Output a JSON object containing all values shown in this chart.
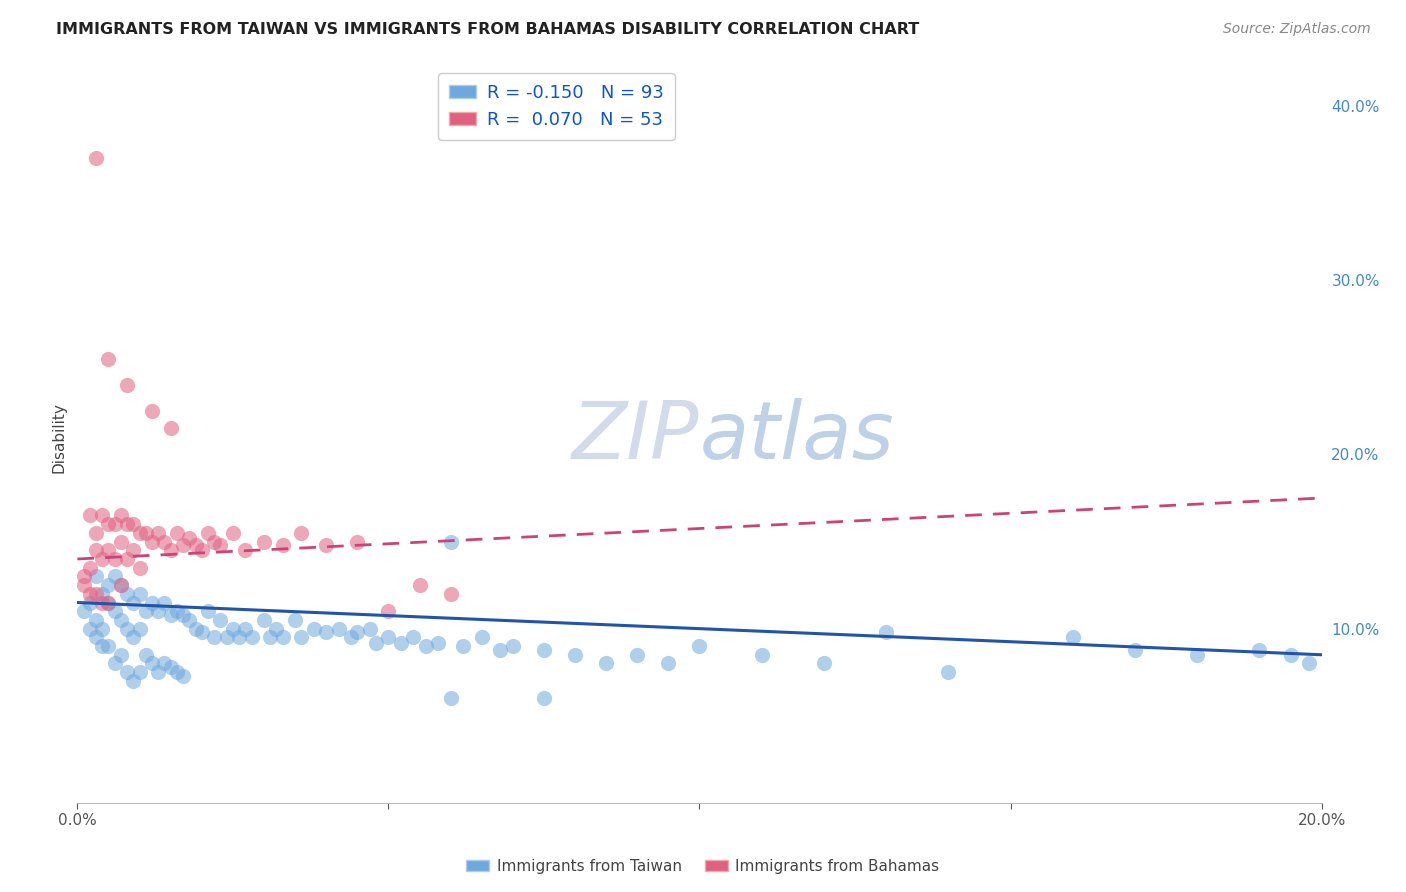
{
  "title": "IMMIGRANTS FROM TAIWAN VS IMMIGRANTS FROM BAHAMAS DISABILITY CORRELATION CHART",
  "source": "Source: ZipAtlas.com",
  "ylabel": "Disability",
  "xlim": [
    0.0,
    0.2
  ],
  "ylim": [
    0.0,
    0.42
  ],
  "x_ticks": [
    0.0,
    0.05,
    0.1,
    0.15,
    0.2
  ],
  "x_tick_labels": [
    "0.0%",
    "",
    "",
    "",
    "20.0%"
  ],
  "y_ticks_right": [
    0.1,
    0.2,
    0.3,
    0.4
  ],
  "y_tick_labels_right": [
    "10.0%",
    "20.0%",
    "30.0%",
    "40.0%"
  ],
  "taiwan_R": -0.15,
  "taiwan_N": 93,
  "bahamas_R": 0.07,
  "bahamas_N": 53,
  "taiwan_color": "#6fa8dc",
  "bahamas_color": "#e06080",
  "taiwan_line_color": "#2255aa",
  "bahamas_line_color": "#cc4477",
  "legend_taiwan_label": "R = -0.150   N = 93",
  "legend_bahamas_label": "R =  0.070   N = 53",
  "bottom_legend_taiwan": "Immigrants from Taiwan",
  "bottom_legend_bahamas": "Immigrants from Bahamas",
  "taiwan_x": [
    0.001,
    0.002,
    0.002,
    0.003,
    0.003,
    0.003,
    0.004,
    0.004,
    0.004,
    0.005,
    0.005,
    0.005,
    0.006,
    0.006,
    0.006,
    0.007,
    0.007,
    0.007,
    0.008,
    0.008,
    0.008,
    0.009,
    0.009,
    0.009,
    0.01,
    0.01,
    0.01,
    0.011,
    0.011,
    0.012,
    0.012,
    0.013,
    0.013,
    0.014,
    0.014,
    0.015,
    0.015,
    0.016,
    0.016,
    0.017,
    0.017,
    0.018,
    0.019,
    0.02,
    0.021,
    0.022,
    0.023,
    0.024,
    0.025,
    0.026,
    0.027,
    0.028,
    0.03,
    0.031,
    0.032,
    0.033,
    0.035,
    0.036,
    0.038,
    0.04,
    0.042,
    0.044,
    0.045,
    0.047,
    0.048,
    0.05,
    0.052,
    0.054,
    0.056,
    0.058,
    0.06,
    0.062,
    0.065,
    0.068,
    0.07,
    0.075,
    0.08,
    0.085,
    0.09,
    0.095,
    0.1,
    0.11,
    0.12,
    0.14,
    0.16,
    0.17,
    0.18,
    0.19,
    0.195,
    0.198,
    0.06,
    0.075,
    0.13
  ],
  "taiwan_y": [
    0.11,
    0.115,
    0.1,
    0.13,
    0.105,
    0.095,
    0.12,
    0.1,
    0.09,
    0.125,
    0.115,
    0.09,
    0.13,
    0.11,
    0.08,
    0.125,
    0.105,
    0.085,
    0.12,
    0.1,
    0.075,
    0.115,
    0.095,
    0.07,
    0.12,
    0.1,
    0.075,
    0.11,
    0.085,
    0.115,
    0.08,
    0.11,
    0.075,
    0.115,
    0.08,
    0.108,
    0.078,
    0.11,
    0.075,
    0.108,
    0.073,
    0.105,
    0.1,
    0.098,
    0.11,
    0.095,
    0.105,
    0.095,
    0.1,
    0.095,
    0.1,
    0.095,
    0.105,
    0.095,
    0.1,
    0.095,
    0.105,
    0.095,
    0.1,
    0.098,
    0.1,
    0.095,
    0.098,
    0.1,
    0.092,
    0.095,
    0.092,
    0.095,
    0.09,
    0.092,
    0.15,
    0.09,
    0.095,
    0.088,
    0.09,
    0.088,
    0.085,
    0.08,
    0.085,
    0.08,
    0.09,
    0.085,
    0.08,
    0.075,
    0.095,
    0.088,
    0.085,
    0.088,
    0.085,
    0.08,
    0.06,
    0.06,
    0.098
  ],
  "bahamas_x": [
    0.001,
    0.001,
    0.002,
    0.002,
    0.002,
    0.003,
    0.003,
    0.003,
    0.004,
    0.004,
    0.004,
    0.005,
    0.005,
    0.005,
    0.006,
    0.006,
    0.007,
    0.007,
    0.007,
    0.008,
    0.008,
    0.009,
    0.009,
    0.01,
    0.01,
    0.011,
    0.012,
    0.013,
    0.014,
    0.015,
    0.016,
    0.017,
    0.018,
    0.019,
    0.02,
    0.021,
    0.022,
    0.023,
    0.025,
    0.027,
    0.03,
    0.033,
    0.036,
    0.04,
    0.045,
    0.05,
    0.055,
    0.06,
    0.003,
    0.005,
    0.008,
    0.012,
    0.015
  ],
  "bahamas_y": [
    0.13,
    0.125,
    0.165,
    0.135,
    0.12,
    0.155,
    0.145,
    0.12,
    0.165,
    0.14,
    0.115,
    0.16,
    0.145,
    0.115,
    0.16,
    0.14,
    0.165,
    0.15,
    0.125,
    0.16,
    0.14,
    0.16,
    0.145,
    0.155,
    0.135,
    0.155,
    0.15,
    0.155,
    0.15,
    0.145,
    0.155,
    0.148,
    0.152,
    0.148,
    0.145,
    0.155,
    0.15,
    0.148,
    0.155,
    0.145,
    0.15,
    0.148,
    0.155,
    0.148,
    0.15,
    0.11,
    0.125,
    0.12,
    0.37,
    0.255,
    0.24,
    0.225,
    0.215
  ],
  "taiwan_line_x": [
    0.0,
    0.2
  ],
  "taiwan_line_y": [
    0.115,
    0.085
  ],
  "bahamas_line_x": [
    0.0,
    0.2
  ],
  "bahamas_line_y": [
    0.14,
    0.175
  ]
}
